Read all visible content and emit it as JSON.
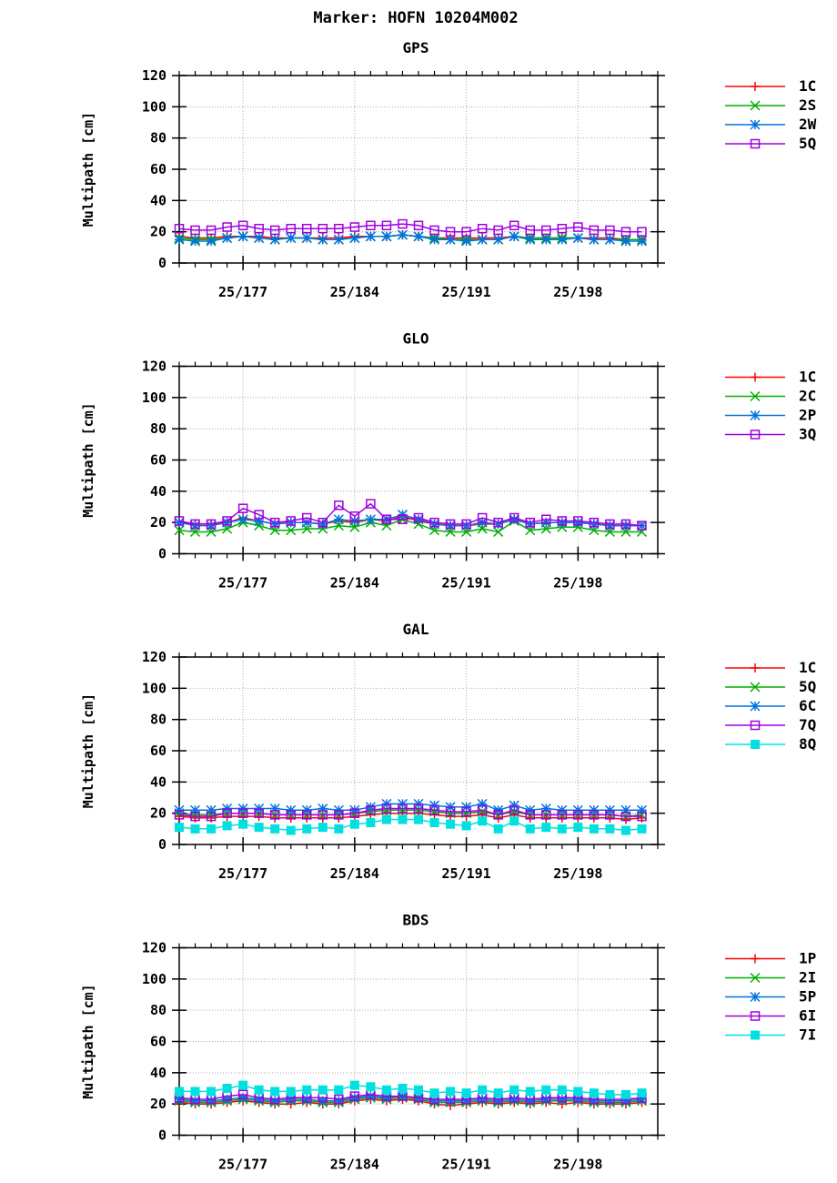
{
  "page_title": "Marker: HOFN 10204M002",
  "colors": {
    "red": "#ff0000",
    "green": "#00b000",
    "blue": "#0072e0",
    "purple": "#a000e0",
    "cyan": "#00e0e0",
    "grid": "#aaaaaa",
    "axis": "#000000"
  },
  "chart_data": [
    {
      "type": "line",
      "title": "GPS",
      "ylabel": "Multipath [cm]",
      "ylim": [
        0,
        120
      ],
      "yticks": [
        0,
        20,
        40,
        60,
        80,
        100,
        120
      ],
      "xlim": [
        173,
        203
      ],
      "xticks": [
        177,
        184,
        191,
        198
      ],
      "xtick_labels": [
        "25/177",
        "25/184",
        "25/191",
        "25/198"
      ],
      "grid": true,
      "legend_position": "right",
      "x": [
        173,
        174,
        175,
        176,
        177,
        178,
        179,
        180,
        181,
        182,
        183,
        184,
        185,
        186,
        187,
        188,
        189,
        190,
        191,
        192,
        193,
        194,
        195,
        196,
        197,
        198,
        199,
        200,
        201,
        202
      ],
      "series": [
        {
          "name": "1C",
          "color": "red",
          "marker": "plus",
          "values": [
            17,
            16,
            16,
            17,
            17,
            17,
            16,
            16,
            16,
            16,
            16,
            17,
            17,
            17,
            18,
            17,
            16,
            16,
            16,
            16,
            16,
            17,
            16,
            16,
            16,
            16,
            16,
            16,
            15,
            15
          ]
        },
        {
          "name": "2S",
          "color": "green",
          "marker": "x",
          "values": [
            16,
            15,
            15,
            16,
            17,
            16,
            15,
            16,
            16,
            15,
            15,
            16,
            17,
            17,
            18,
            17,
            16,
            15,
            15,
            15,
            15,
            17,
            16,
            16,
            16,
            16,
            15,
            15,
            15,
            15
          ]
        },
        {
          "name": "2W",
          "color": "blue",
          "marker": "star",
          "values": [
            15,
            14,
            14,
            16,
            17,
            16,
            15,
            16,
            16,
            15,
            15,
            16,
            17,
            17,
            18,
            17,
            15,
            15,
            14,
            15,
            15,
            17,
            15,
            15,
            15,
            16,
            15,
            15,
            14,
            14
          ]
        },
        {
          "name": "5Q",
          "color": "purple",
          "marker": "square",
          "values": [
            22,
            21,
            21,
            23,
            24,
            22,
            21,
            22,
            22,
            22,
            22,
            23,
            24,
            24,
            25,
            24,
            21,
            20,
            20,
            22,
            21,
            24,
            21,
            21,
            22,
            23,
            21,
            21,
            20,
            20
          ]
        }
      ]
    },
    {
      "type": "line",
      "title": "GLO",
      "ylabel": "Multipath [cm]",
      "ylim": [
        0,
        120
      ],
      "yticks": [
        0,
        20,
        40,
        60,
        80,
        100,
        120
      ],
      "xlim": [
        173,
        203
      ],
      "xticks": [
        177,
        184,
        191,
        198
      ],
      "xtick_labels": [
        "25/177",
        "25/184",
        "25/191",
        "25/198"
      ],
      "grid": true,
      "legend_position": "right",
      "x": [
        173,
        174,
        175,
        176,
        177,
        178,
        179,
        180,
        181,
        182,
        183,
        184,
        185,
        186,
        187,
        188,
        189,
        190,
        191,
        192,
        193,
        194,
        195,
        196,
        197,
        198,
        199,
        200,
        201,
        202
      ],
      "series": [
        {
          "name": "1C",
          "color": "red",
          "marker": "plus",
          "values": [
            20,
            19,
            19,
            20,
            23,
            21,
            19,
            20,
            20,
            19,
            21,
            20,
            22,
            21,
            24,
            21,
            19,
            18,
            18,
            19,
            19,
            22,
            19,
            20,
            20,
            20,
            19,
            18,
            18,
            18
          ]
        },
        {
          "name": "2C",
          "color": "green",
          "marker": "x",
          "values": [
            15,
            14,
            14,
            16,
            20,
            18,
            15,
            15,
            16,
            16,
            18,
            17,
            20,
            18,
            22,
            19,
            15,
            14,
            14,
            16,
            14,
            21,
            15,
            16,
            17,
            17,
            15,
            14,
            14,
            14
          ]
        },
        {
          "name": "2P",
          "color": "blue",
          "marker": "star",
          "values": [
            20,
            18,
            18,
            20,
            22,
            21,
            19,
            20,
            20,
            19,
            22,
            21,
            22,
            22,
            25,
            22,
            19,
            18,
            18,
            20,
            19,
            22,
            19,
            20,
            20,
            20,
            19,
            18,
            18,
            18
          ]
        },
        {
          "name": "3Q",
          "color": "purple",
          "marker": "square",
          "values": [
            21,
            19,
            19,
            21,
            29,
            25,
            20,
            21,
            23,
            20,
            31,
            24,
            32,
            22,
            22,
            23,
            20,
            19,
            19,
            23,
            20,
            23,
            20,
            22,
            21,
            21,
            20,
            19,
            19,
            18
          ]
        }
      ]
    },
    {
      "type": "line",
      "title": "GAL",
      "ylabel": "Multipath [cm]",
      "ylim": [
        0,
        120
      ],
      "yticks": [
        0,
        20,
        40,
        60,
        80,
        100,
        120
      ],
      "xlim": [
        173,
        203
      ],
      "xticks": [
        177,
        184,
        191,
        198
      ],
      "xtick_labels": [
        "25/177",
        "25/184",
        "25/191",
        "25/198"
      ],
      "grid": true,
      "legend_position": "right",
      "x": [
        173,
        174,
        175,
        176,
        177,
        178,
        179,
        180,
        181,
        182,
        183,
        184,
        185,
        186,
        187,
        188,
        189,
        190,
        191,
        192,
        193,
        194,
        195,
        196,
        197,
        198,
        199,
        200,
        201,
        202
      ],
      "series": [
        {
          "name": "1C",
          "color": "red",
          "marker": "plus",
          "values": [
            18,
            17,
            17,
            18,
            18,
            18,
            17,
            17,
            17,
            17,
            17,
            18,
            19,
            20,
            20,
            20,
            19,
            18,
            18,
            19,
            17,
            19,
            17,
            17,
            17,
            17,
            17,
            17,
            16,
            17
          ]
        },
        {
          "name": "5Q",
          "color": "green",
          "marker": "x",
          "values": [
            20,
            19,
            19,
            20,
            20,
            20,
            19,
            19,
            19,
            19,
            19,
            20,
            21,
            22,
            22,
            22,
            21,
            20,
            20,
            21,
            19,
            21,
            19,
            19,
            19,
            19,
            19,
            19,
            18,
            19
          ]
        },
        {
          "name": "6C",
          "color": "blue",
          "marker": "star",
          "values": [
            22,
            22,
            22,
            23,
            23,
            23,
            23,
            22,
            22,
            23,
            22,
            22,
            24,
            26,
            26,
            26,
            25,
            24,
            24,
            26,
            22,
            25,
            22,
            23,
            22,
            22,
            22,
            22,
            22,
            22
          ]
        },
        {
          "name": "7Q",
          "color": "purple",
          "marker": "square",
          "values": [
            19,
            18,
            18,
            20,
            20,
            20,
            19,
            19,
            19,
            19,
            19,
            20,
            22,
            23,
            23,
            23,
            22,
            21,
            21,
            22,
            19,
            22,
            19,
            19,
            19,
            19,
            19,
            19,
            18,
            18
          ]
        },
        {
          "name": "8Q",
          "color": "cyan",
          "marker": "filled-square",
          "values": [
            11,
            10,
            10,
            12,
            13,
            11,
            10,
            9,
            10,
            11,
            10,
            13,
            14,
            16,
            16,
            16,
            14,
            13,
            12,
            15,
            10,
            15,
            10,
            11,
            10,
            11,
            10,
            10,
            9,
            10
          ]
        }
      ]
    },
    {
      "type": "line",
      "title": "BDS",
      "ylabel": "Multipath [cm]",
      "ylim": [
        0,
        120
      ],
      "yticks": [
        0,
        20,
        40,
        60,
        80,
        100,
        120
      ],
      "xlim": [
        173,
        203
      ],
      "xticks": [
        177,
        184,
        191,
        198
      ],
      "xtick_labels": [
        "25/177",
        "25/184",
        "25/191",
        "25/198"
      ],
      "grid": true,
      "legend_position": "right",
      "x": [
        173,
        174,
        175,
        176,
        177,
        178,
        179,
        180,
        181,
        182,
        183,
        184,
        185,
        186,
        187,
        188,
        189,
        190,
        191,
        192,
        193,
        194,
        195,
        196,
        197,
        198,
        199,
        200,
        201,
        202
      ],
      "series": [
        {
          "name": "1P",
          "color": "red",
          "marker": "plus",
          "values": [
            21,
            20,
            20,
            21,
            22,
            21,
            20,
            20,
            21,
            20,
            20,
            22,
            23,
            22,
            23,
            22,
            20,
            19,
            20,
            21,
            20,
            21,
            20,
            21,
            20,
            21,
            20,
            20,
            20,
            21
          ]
        },
        {
          "name": "2I",
          "color": "green",
          "marker": "x",
          "values": [
            22,
            21,
            21,
            22,
            23,
            22,
            21,
            22,
            22,
            21,
            21,
            23,
            24,
            23,
            24,
            23,
            21,
            21,
            21,
            22,
            21,
            22,
            21,
            22,
            22,
            22,
            21,
            21,
            21,
            22
          ]
        },
        {
          "name": "5P",
          "color": "blue",
          "marker": "star",
          "values": [
            23,
            22,
            22,
            23,
            24,
            23,
            22,
            23,
            23,
            22,
            22,
            24,
            25,
            24,
            25,
            24,
            22,
            22,
            22,
            23,
            22,
            23,
            22,
            23,
            23,
            23,
            22,
            22,
            22,
            23
          ]
        },
        {
          "name": "6I",
          "color": "purple",
          "marker": "square",
          "values": [
            24,
            23,
            23,
            25,
            26,
            24,
            23,
            24,
            24,
            24,
            23,
            25,
            26,
            25,
            25,
            24,
            23,
            23,
            23,
            24,
            23,
            24,
            23,
            24,
            24,
            24,
            23,
            23,
            23,
            24
          ]
        },
        {
          "name": "7I",
          "color": "cyan",
          "marker": "filled-square",
          "values": [
            28,
            28,
            28,
            30,
            32,
            29,
            28,
            28,
            29,
            29,
            29,
            32,
            31,
            29,
            30,
            29,
            27,
            28,
            27,
            29,
            27,
            29,
            28,
            29,
            29,
            28,
            27,
            26,
            26,
            27
          ]
        }
      ]
    }
  ]
}
